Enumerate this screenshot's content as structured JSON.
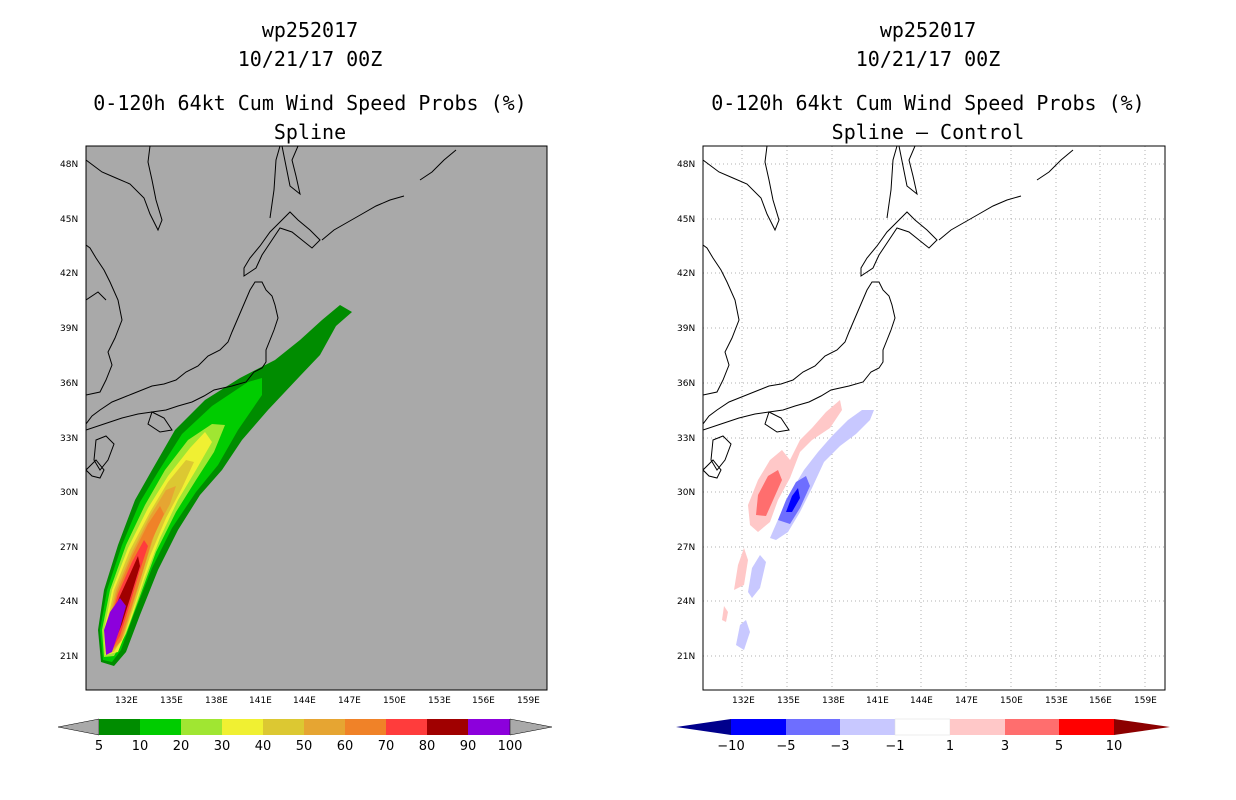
{
  "chart_data": [
    {
      "type": "heatmap",
      "storm_id": "wp252017",
      "datetime": "10/21/17 00Z",
      "title": "0-120h 64kt Cum Wind Speed Probs (%)",
      "subtitle": "Spline",
      "background": "#a9a9a9",
      "lon_range": [
        129,
        160
      ],
      "lat_range": [
        19,
        49
      ],
      "lon_ticks": [
        "132E",
        "135E",
        "138E",
        "141E",
        "144E",
        "147E",
        "150E",
        "153E",
        "156E",
        "159E"
      ],
      "lat_ticks": [
        "48N",
        "45N",
        "42N",
        "39N",
        "36N",
        "33N",
        "30N",
        "27N",
        "24N",
        "21N"
      ],
      "colorbar_labels": [
        "5",
        "10",
        "20",
        "30",
        "40",
        "50",
        "60",
        "70",
        "80",
        "90",
        "100"
      ],
      "colorbar_colors": [
        "#008c00",
        "#00cc00",
        "#a0e632",
        "#f0f032",
        "#dcc832",
        "#e6a532",
        "#f08228",
        "#ff3c3c",
        "#a00000",
        "#8c00dc"
      ],
      "track_max_prob_along_track": [
        {
          "lon": 131.6,
          "lat": 21.0,
          "value": 100
        },
        {
          "lon": 132.1,
          "lat": 23.5,
          "value": 90
        },
        {
          "lon": 133.0,
          "lat": 26.0,
          "value": 80
        },
        {
          "lon": 134.0,
          "lat": 28.5,
          "value": 70
        },
        {
          "lon": 135.5,
          "lat": 31.0,
          "value": 50
        },
        {
          "lon": 137.5,
          "lat": 33.5,
          "value": 30
        },
        {
          "lon": 140.0,
          "lat": 35.5,
          "value": 20
        },
        {
          "lon": 143.0,
          "lat": 37.5,
          "value": 10
        },
        {
          "lon": 146.5,
          "lat": 40.0,
          "value": 5
        }
      ]
    },
    {
      "type": "heatmap",
      "storm_id": "wp252017",
      "datetime": "10/21/17 00Z",
      "title": "0-120h 64kt Cum Wind Speed Probs (%)",
      "subtitle": "Spline – Control",
      "background": "#ffffff",
      "lon_range": [
        129,
        160
      ],
      "lat_range": [
        19,
        49
      ],
      "lon_ticks": [
        "132E",
        "135E",
        "138E",
        "141E",
        "144E",
        "147E",
        "150E",
        "153E",
        "156E",
        "159E"
      ],
      "lat_ticks": [
        "48N",
        "45N",
        "42N",
        "39N",
        "36N",
        "33N",
        "30N",
        "27N",
        "24N",
        "21N"
      ],
      "colorbar_labels": [
        "−10",
        "−5",
        "−3",
        "−1",
        "1",
        "3",
        "5",
        "10"
      ],
      "colorbar_colors": [
        "#00008c",
        "#0000ff",
        "#6e6eff",
        "#c8c8ff",
        "#ffffff",
        "#ffc8c8",
        "#ff6e6e",
        "#ff0000",
        "#8c0000"
      ]
    }
  ]
}
